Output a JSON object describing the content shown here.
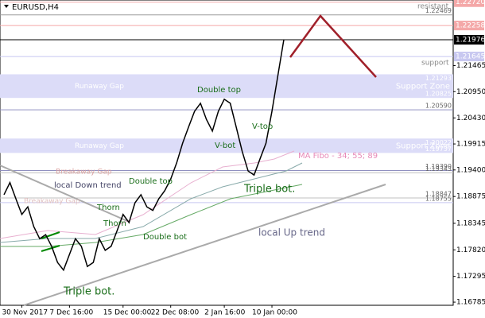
{
  "chart_data": {
    "type": "line",
    "title": "EURUSD,H4",
    "categories": [
      null,
      null,
      null,
      "30 Nov 2017",
      null,
      null,
      null,
      null,
      null,
      null,
      null,
      "7 Dec 16:00",
      null,
      null,
      null,
      null,
      null,
      null,
      null,
      null,
      "15 Dec 00:00",
      null,
      null,
      null,
      null,
      null,
      null,
      null,
      "22 Dec 08:00",
      null,
      null,
      null,
      null,
      null,
      null,
      null,
      null,
      "2 Jan 16:00",
      null,
      null,
      null,
      null,
      null,
      null,
      null,
      "10 Jan 00:00",
      null,
      null
    ],
    "series": [
      {
        "color": "#000000",
        "values": [
          1.1891,
          1.1915,
          1.1883,
          1.1852,
          1.1867,
          1.1828,
          1.1804,
          1.1812,
          1.1789,
          1.1757,
          1.1742,
          1.1773,
          1.1804,
          1.1789,
          1.1749,
          1.1757,
          1.1804,
          1.1781,
          1.1789,
          1.182,
          1.1852,
          1.1836,
          1.1875,
          1.1891,
          1.1867,
          1.186,
          1.1883,
          1.1899,
          1.1922,
          1.1954,
          1.1993,
          1.2025,
          1.2056,
          1.2072,
          1.204,
          1.2017,
          1.2056,
          1.208,
          1.2072,
          1.2025,
          1.1977,
          1.1938,
          1.193,
          1.1962,
          1.1993,
          1.2056,
          1.2127,
          1.2198
        ]
      }
    ],
    "ylim": [
      1.16723,
      1.22763
    ],
    "yticks": [
      1.21465,
      {
        "value": 1.2095,
        "label": "1.20950"
      },
      {
        "value": 1.2043,
        "label": "1.20430"
      },
      1.19915,
      {
        "value": 1.194,
        "label": "1.19400"
      },
      1.18875,
      1.18345,
      {
        "value": 1.1782,
        "label": "1.17820"
      },
      1.17295,
      1.16785
    ],
    "axis_levels": [
      {
        "value": 1.2272,
        "label": "1.22720",
        "color": "#f4a8a8"
      },
      {
        "value": 1.22258,
        "label": "1.22258",
        "color": "#f4a8a8"
      },
      {
        "value": 1.21976,
        "label": "1.21976",
        "color": "#000000"
      },
      {
        "value": 1.21645,
        "label": "1.21645",
        "color": "#c8c8f0"
      }
    ],
    "chart_levels": [
      {
        "value": 1.22469,
        "label": "1.22469",
        "color": "#999999"
      },
      {
        "value": 1.2059,
        "label": "1.20590",
        "color": "#9090c0"
      },
      {
        "value": 1.1939,
        "label": "1.19390",
        "color": "#9090c0"
      },
      {
        "value": 1.19343,
        "label": "1.19343",
        "color": "#c0c0c0"
      },
      {
        "value": 1.18847,
        "label": "1.18847",
        "color": "#c0c0c0"
      },
      {
        "value": 1.18755,
        "label": "1.18755",
        "color": "#c8c8f0"
      }
    ],
    "zones": [
      {
        "high": 1.21293,
        "low": 1.20825,
        "high_label": "1.21293",
        "low_label": "1.20825",
        "name": "Support Zone",
        "gap": "Runaway Gap"
      },
      {
        "high": 1.20022,
        "low": 1.19737,
        "high_label": "1.20022",
        "low_label": "1.19737",
        "name": "Support Zone",
        "gap": "Runaway Gap"
      }
    ],
    "annotations": {
      "resistant": "resistant",
      "support": "support",
      "double_top": "Double top",
      "v_top": "V-top",
      "v_bot": "V-bot",
      "double_top_2": "Double top",
      "thorn_1": "Thorn",
      "thorn_2": "Thorn",
      "double_bot": "Double bot",
      "triple_bot_1": "Triple bot.",
      "triple_bot_2": "Triple bot.",
      "down_trend": "local Down trend",
      "up_trend": "local Up trend",
      "breakaway_gap": "Breakaway Gap",
      "breakaway_gap_2": "Breakaway Gap",
      "ma_fibo": "MA Fibo - 34; 55; 89"
    }
  }
}
